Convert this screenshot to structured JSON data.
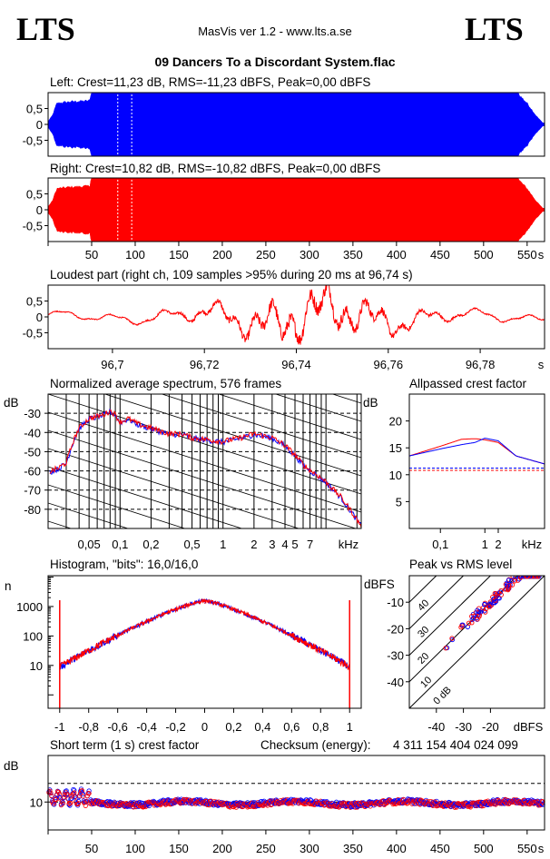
{
  "header": {
    "logo_left": "LTS",
    "logo_right": "LTS",
    "app_title": "MasVis ver 1.2 - www.lts.a.se",
    "file_title": "09 Dancers To a Discordant System.flac"
  },
  "colors": {
    "left": "#0000ff",
    "right": "#ff0000"
  },
  "chart_data": [
    {
      "id": "left",
      "type": "area",
      "title": "Left: Crest=11,23 dB, RMS=-11,23 dBFS, Peak=0,00 dBFS",
      "ylim": [
        -1,
        1
      ],
      "xlim": [
        0,
        570
      ],
      "yticks": [
        0.5,
        0,
        -0.5
      ],
      "ytick_labels": [
        "0,5",
        "0",
        "-0,5"
      ],
      "envelope": [
        [
          0,
          0.1
        ],
        [
          5,
          0.3
        ],
        [
          10,
          0.7
        ],
        [
          15,
          0.72
        ],
        [
          25,
          0.75
        ],
        [
          45,
          0.78
        ],
        [
          48,
          0.8
        ],
        [
          49,
          1
        ],
        [
          540,
          1
        ],
        [
          550,
          0.7
        ],
        [
          560,
          0.3
        ],
        [
          568,
          0.05
        ]
      ]
    },
    {
      "id": "right",
      "type": "area",
      "title": "Right: Crest=10,82 dB, RMS=-10,82 dBFS, Peak=0,00 dBFS",
      "ylim": [
        -1,
        1
      ],
      "xlim": [
        0,
        570
      ],
      "yticks": [
        0.5,
        0,
        -0.5
      ],
      "ytick_labels": [
        "0,5",
        "0",
        "-0,5"
      ],
      "xticks": [
        50,
        100,
        150,
        200,
        250,
        300,
        350,
        400,
        450,
        500,
        550
      ],
      "xtick_labels": [
        "50",
        "100",
        "150",
        "200",
        "250",
        "300",
        "350",
        "400",
        "450",
        "500",
        "550"
      ],
      "xunit": "s",
      "envelope": [
        [
          0,
          0.1
        ],
        [
          5,
          0.3
        ],
        [
          10,
          0.7
        ],
        [
          15,
          0.72
        ],
        [
          25,
          0.75
        ],
        [
          45,
          0.78
        ],
        [
          48,
          0.8
        ],
        [
          49,
          1
        ],
        [
          540,
          1
        ],
        [
          550,
          0.7
        ],
        [
          560,
          0.3
        ],
        [
          568,
          0.05
        ]
      ]
    },
    {
      "id": "loudest",
      "type": "line",
      "title": "Loudest part (right ch, 109 samples >95% during 20 ms at 96,74 s)",
      "xlim": [
        96.686,
        96.794
      ],
      "ylim": [
        -1,
        1
      ],
      "yticks": [
        0.5,
        0,
        -0.5
      ],
      "ytick_labels": [
        "0,5",
        "0",
        "-0,5"
      ],
      "xticks": [
        96.7,
        96.72,
        96.74,
        96.76,
        96.78
      ],
      "xtick_labels": [
        "96,7",
        "96,72",
        "96,74",
        "96,76",
        "96,78"
      ],
      "xunit": "s"
    },
    {
      "id": "spectrum",
      "type": "line",
      "title": "Normalized average spectrum, 576 frames",
      "ylabel": "dB",
      "xunit": "kHz",
      "ylim": [
        -90,
        -20
      ],
      "yticks": [
        -30,
        -40,
        -50,
        -60,
        -70,
        -80
      ],
      "ytick_labels": [
        "-30",
        "-40",
        "-50",
        "-60",
        "-70",
        "-80"
      ],
      "xlim_khz": [
        0.02,
        22
      ],
      "xticks_khz": [
        0.05,
        0.1,
        0.2,
        0.5,
        1,
        2,
        3,
        4,
        5,
        7
      ],
      "xtick_labels": [
        "0,05",
        "0,1",
        "0,2",
        "0,5",
        "1",
        "2",
        "3",
        "4",
        "5",
        "7"
      ],
      "series_points": [
        [
          0.02,
          -61
        ],
        [
          0.025,
          -59
        ],
        [
          0.03,
          -56
        ],
        [
          0.035,
          -45
        ],
        [
          0.04,
          -38
        ],
        [
          0.05,
          -33
        ],
        [
          0.06,
          -32
        ],
        [
          0.07,
          -31
        ],
        [
          0.08,
          -29
        ],
        [
          0.09,
          -31
        ],
        [
          0.1,
          -35
        ],
        [
          0.12,
          -33
        ],
        [
          0.15,
          -36
        ],
        [
          0.2,
          -38
        ],
        [
          0.3,
          -41
        ],
        [
          0.4,
          -41
        ],
        [
          0.5,
          -43
        ],
        [
          0.7,
          -44
        ],
        [
          1,
          -45
        ],
        [
          1.5,
          -43
        ],
        [
          2,
          -41
        ],
        [
          3,
          -43
        ],
        [
          4,
          -47
        ],
        [
          5,
          -52
        ],
        [
          6,
          -57
        ],
        [
          7,
          -60
        ],
        [
          8,
          -62
        ],
        [
          10,
          -66
        ],
        [
          14,
          -74
        ],
        [
          18,
          -82
        ],
        [
          22,
          -89
        ]
      ]
    },
    {
      "id": "allpass",
      "type": "line",
      "title": "Allpassed crest factor",
      "ylabel": "dB",
      "xunit": "kHz",
      "ylim": [
        0,
        25
      ],
      "yticks": [
        5,
        10,
        15,
        20
      ],
      "ytick_labels": [
        "5",
        "10",
        "15",
        "20"
      ],
      "xticks_khz": [
        0.1,
        1,
        2
      ],
      "xtick_labels": [
        "0,1",
        "1",
        "2"
      ],
      "crest_left": 11.23,
      "crest_right": 10.82,
      "left_points": [
        [
          0.02,
          13.5
        ],
        [
          0.1,
          14.8
        ],
        [
          0.3,
          15.6
        ],
        [
          0.6,
          16
        ],
        [
          1,
          16.8
        ],
        [
          2,
          16.3
        ],
        [
          5,
          13.5
        ],
        [
          10,
          12.8
        ],
        [
          22,
          12
        ]
      ],
      "right_points": [
        [
          0.02,
          13.5
        ],
        [
          0.1,
          15.3
        ],
        [
          0.3,
          16.6
        ],
        [
          0.6,
          16.7
        ],
        [
          1,
          16.5
        ],
        [
          2,
          16
        ],
        [
          5,
          13.5
        ],
        [
          10,
          12.8
        ],
        [
          22,
          12
        ]
      ]
    },
    {
      "id": "histogram",
      "type": "line",
      "title": "Histogram, \"bits\": 16,0/16,0",
      "ylabel": "n",
      "xlim": [
        -1.08,
        1.08
      ],
      "xticks": [
        -1,
        -0.8,
        -0.6,
        -0.4,
        -0.2,
        0,
        0.2,
        0.4,
        0.6,
        0.8,
        1
      ],
      "xtick_labels": [
        "-1",
        "-0,8",
        "-0,6",
        "-0,4",
        "-0,2",
        "0",
        "0,2",
        "0,4",
        "0,6",
        "0,8",
        "1"
      ],
      "yticks": [
        10,
        100,
        1000
      ],
      "ytick_labels": [
        "10",
        "100",
        "1000"
      ]
    },
    {
      "id": "peakrms",
      "type": "scatter",
      "title": "Peak vs RMS level",
      "ylabel": "dBFS",
      "xunit": "dBFS",
      "xlim": [
        -50,
        0
      ],
      "ylim": [
        -50,
        0
      ],
      "xticks": [
        -40,
        -30,
        -20
      ],
      "xtick_labels": [
        "-40",
        "-30",
        "-20"
      ],
      "yticks": [
        -10,
        -20,
        -30,
        -40
      ],
      "ytick_labels": [
        "-10",
        "-20",
        "-30",
        "-40"
      ],
      "diag_labels": [
        "40",
        "30",
        "20",
        "10",
        "0 dB"
      ]
    },
    {
      "id": "shortcrest",
      "type": "scatter",
      "title": "Short term (1 s) crest factor",
      "checksum_label": "Checksum (energy):",
      "checksum_value": "4 311 154 404 024 099",
      "ylabel": "dB",
      "ytick_labels": [
        "10"
      ],
      "xticks": [
        50,
        100,
        150,
        200,
        250,
        300,
        350,
        400,
        450,
        500,
        550
      ],
      "xtick_labels": [
        "50",
        "100",
        "150",
        "200",
        "250",
        "300",
        "350",
        "400",
        "450",
        "500",
        "550"
      ],
      "xunit": "s"
    }
  ]
}
